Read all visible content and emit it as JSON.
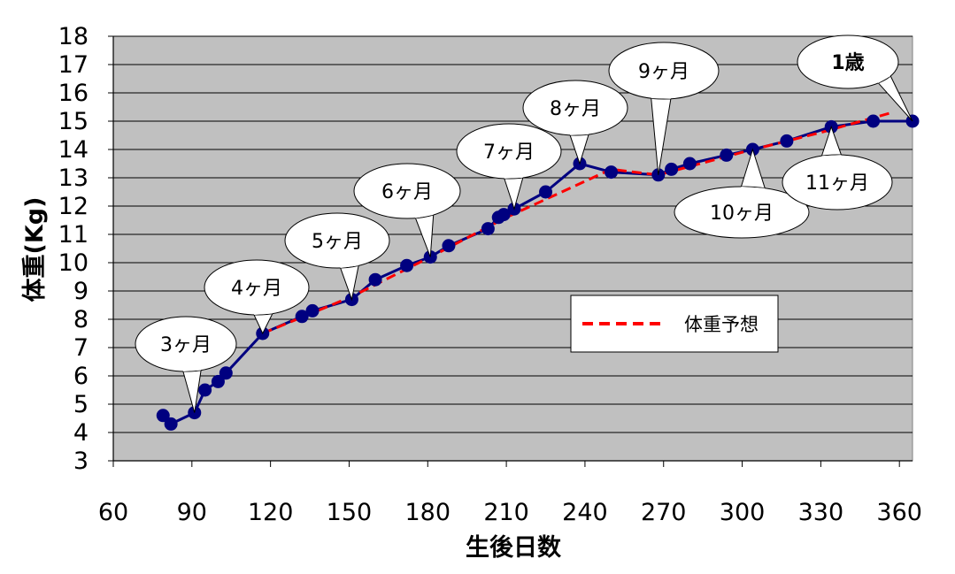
{
  "chart_data": {
    "type": "line",
    "xlabel": "生後日数",
    "ylabel": "体重(Kg)",
    "xlim": [
      60,
      365
    ],
    "ylim": [
      3,
      18
    ],
    "xticks": [
      60,
      90,
      120,
      150,
      180,
      210,
      240,
      270,
      300,
      330,
      360
    ],
    "yticks": [
      3,
      4,
      5,
      6,
      7,
      8,
      9,
      10,
      11,
      12,
      13,
      14,
      15,
      16,
      17,
      18
    ],
    "grid": "horizontal",
    "background_color": "#c0c0c0",
    "series": [
      {
        "color": "#000080",
        "marker": "circle",
        "line_style": "solid",
        "points": [
          [
            79,
            4.6
          ],
          [
            82,
            4.3
          ],
          [
            91,
            4.7
          ],
          [
            95,
            5.5
          ],
          [
            100,
            5.8
          ],
          [
            103,
            6.1
          ],
          [
            117,
            7.5
          ],
          [
            132,
            8.1
          ],
          [
            136,
            8.3
          ],
          [
            151,
            8.7
          ],
          [
            160,
            9.4
          ],
          [
            172,
            9.9
          ],
          [
            181,
            10.2
          ],
          [
            188,
            10.6
          ],
          [
            203,
            11.2
          ],
          [
            207,
            11.6
          ],
          [
            209,
            11.7
          ],
          [
            213,
            11.9
          ],
          [
            225,
            12.5
          ],
          [
            238,
            13.5
          ],
          [
            250,
            13.2
          ],
          [
            268,
            13.1
          ],
          [
            273,
            13.3
          ],
          [
            280,
            13.5
          ],
          [
            294,
            13.8
          ],
          [
            304,
            14.0
          ],
          [
            317,
            14.3
          ],
          [
            334,
            14.8
          ],
          [
            350,
            15.0
          ],
          [
            365,
            15.0
          ]
        ]
      },
      {
        "name": "体重予想",
        "color": "#ff0000",
        "line_style": "dashed",
        "points": [
          [
            117,
            7.5
          ],
          [
            151,
            8.8
          ],
          [
            181,
            10.2
          ],
          [
            210,
            11.6
          ],
          [
            250,
            13.3
          ],
          [
            268,
            13.1
          ],
          [
            300,
            13.9
          ],
          [
            330,
            14.6
          ],
          [
            357,
            15.3
          ]
        ]
      }
    ],
    "legend": {
      "position": "center-right",
      "entries": [
        "体重予想"
      ]
    },
    "annotations": [
      {
        "text": "3ヶ月",
        "x": 91,
        "y": 4.7
      },
      {
        "text": "4ヶ月",
        "x": 117,
        "y": 7.5
      },
      {
        "text": "5ヶ月",
        "x": 151,
        "y": 8.7
      },
      {
        "text": "6ヶ月",
        "x": 181,
        "y": 10.2
      },
      {
        "text": "7ヶ月",
        "x": 213,
        "y": 11.9
      },
      {
        "text": "8ヶ月",
        "x": 238,
        "y": 13.5
      },
      {
        "text": "9ヶ月",
        "x": 268,
        "y": 13.1
      },
      {
        "text": "10ヶ月",
        "x": 304,
        "y": 14.0
      },
      {
        "text": "11ヶ月",
        "x": 334,
        "y": 14.8
      },
      {
        "text": "1歳",
        "x": 365,
        "y": 15.0,
        "color": "#ff0000",
        "bold": true
      }
    ]
  }
}
